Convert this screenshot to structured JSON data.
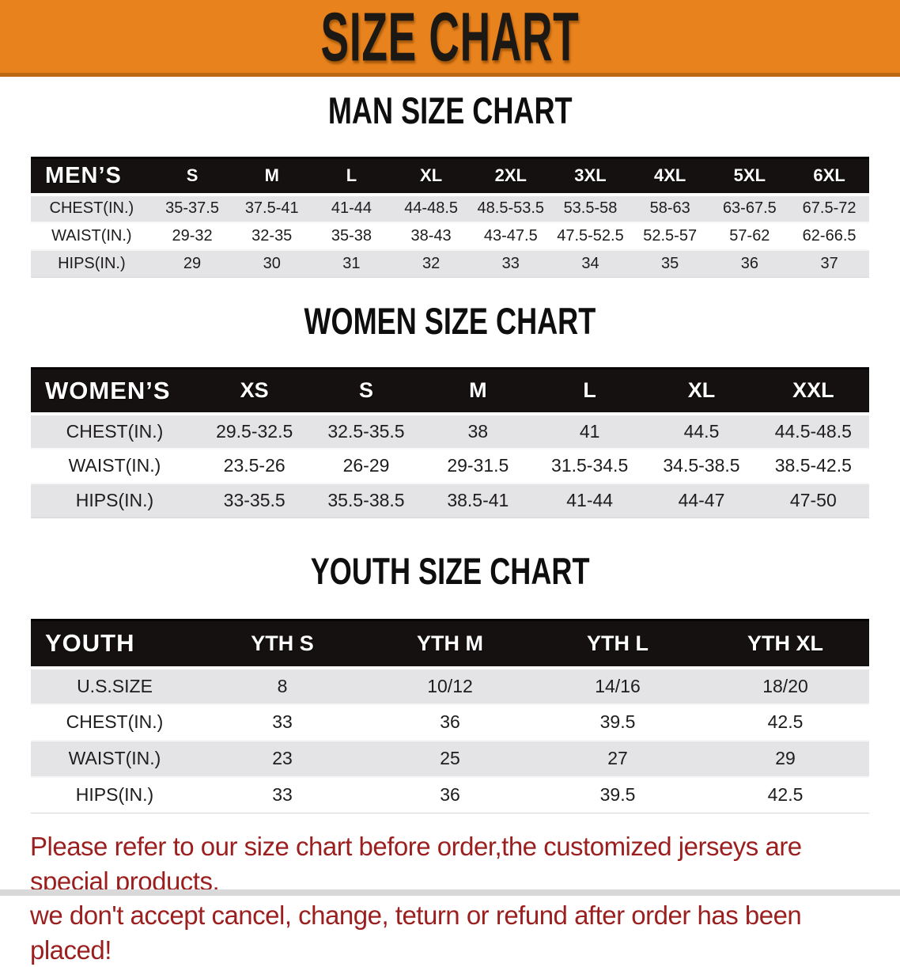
{
  "banner": {
    "title": "SIZE CHART",
    "bg_color": "#e8821c",
    "border_color": "#b96a12",
    "text_color": "#1c1814"
  },
  "tables": [
    {
      "id": "mens",
      "heading": "MAN SIZE CHART",
      "header_label": "MEN’S",
      "sizes": [
        "S",
        "M",
        "L",
        "XL",
        "2XL",
        "3XL",
        "4XL",
        "5XL",
        "6XL"
      ],
      "label_col_width": "14.5",
      "rows": [
        {
          "label": "CHEST(IN.)",
          "shade": true,
          "values": [
            "35-37.5",
            "37.5-41",
            "41-44",
            "44-48.5",
            "48.5-53.5",
            "53.5-58",
            "58-63",
            "63-67.5",
            "67.5-72"
          ]
        },
        {
          "label": "WAIST(IN.)",
          "shade": false,
          "values": [
            "29-32",
            "32-35",
            "35-38",
            "38-43",
            "43-47.5",
            "47.5-52.5",
            "52.5-57",
            "57-62",
            "62-66.5"
          ]
        },
        {
          "label": "HIPS(IN.)",
          "shade": true,
          "values": [
            "29",
            "30",
            "31",
            "32",
            "33",
            "34",
            "35",
            "36",
            "37"
          ]
        }
      ]
    },
    {
      "id": "womens",
      "heading": "WOMEN SIZE CHART",
      "header_label": "WOMEN’S",
      "sizes": [
        "XS",
        "S",
        "M",
        "L",
        "XL",
        "XXL"
      ],
      "label_col_width": "20",
      "rows": [
        {
          "label": "CHEST(IN.)",
          "shade": true,
          "values": [
            "29.5-32.5",
            "32.5-35.5",
            "38",
            "41",
            "44.5",
            "44.5-48.5"
          ]
        },
        {
          "label": "WAIST(IN.)",
          "shade": false,
          "values": [
            "23.5-26",
            "26-29",
            "29-31.5",
            "31.5-34.5",
            "34.5-38.5",
            "38.5-42.5"
          ]
        },
        {
          "label": "HIPS(IN.)",
          "shade": true,
          "values": [
            "33-35.5",
            "35.5-38.5",
            "38.5-41",
            "41-44",
            "44-47",
            "47-50"
          ]
        }
      ]
    },
    {
      "id": "youth",
      "heading": "YOUTH SIZE CHART",
      "header_label": "YOUTH",
      "sizes": [
        "YTH S",
        "YTH M",
        "YTH L",
        "YTH XL"
      ],
      "label_col_width": "20",
      "rows": [
        {
          "label": "U.S.SIZE",
          "shade": true,
          "values": [
            "8",
            "10/12",
            "14/16",
            "18/20"
          ]
        },
        {
          "label": "CHEST(IN.)",
          "shade": false,
          "values": [
            "33",
            "36",
            "39.5",
            "42.5"
          ]
        },
        {
          "label": "WAIST(IN.)",
          "shade": true,
          "values": [
            "23",
            "25",
            "27",
            "29"
          ]
        },
        {
          "label": "HIPS(IN.)",
          "shade": false,
          "values": [
            "33",
            "36",
            "39.5",
            "42.5"
          ]
        }
      ]
    }
  ],
  "disclaimer": {
    "line1": "Please refer to our size chart before order,the customized jerseys are special products,",
    "line2": "we don't accept cancel, change, teturn or refund after order has been placed!",
    "color": "#9c1f1f"
  },
  "table_colors": {
    "header_bg": "#161111",
    "header_text": "#ffffff",
    "shade_row_bg": "#e4e3e6",
    "plain_row_bg": "#ffffff",
    "body_text": "#1e1c1c"
  }
}
